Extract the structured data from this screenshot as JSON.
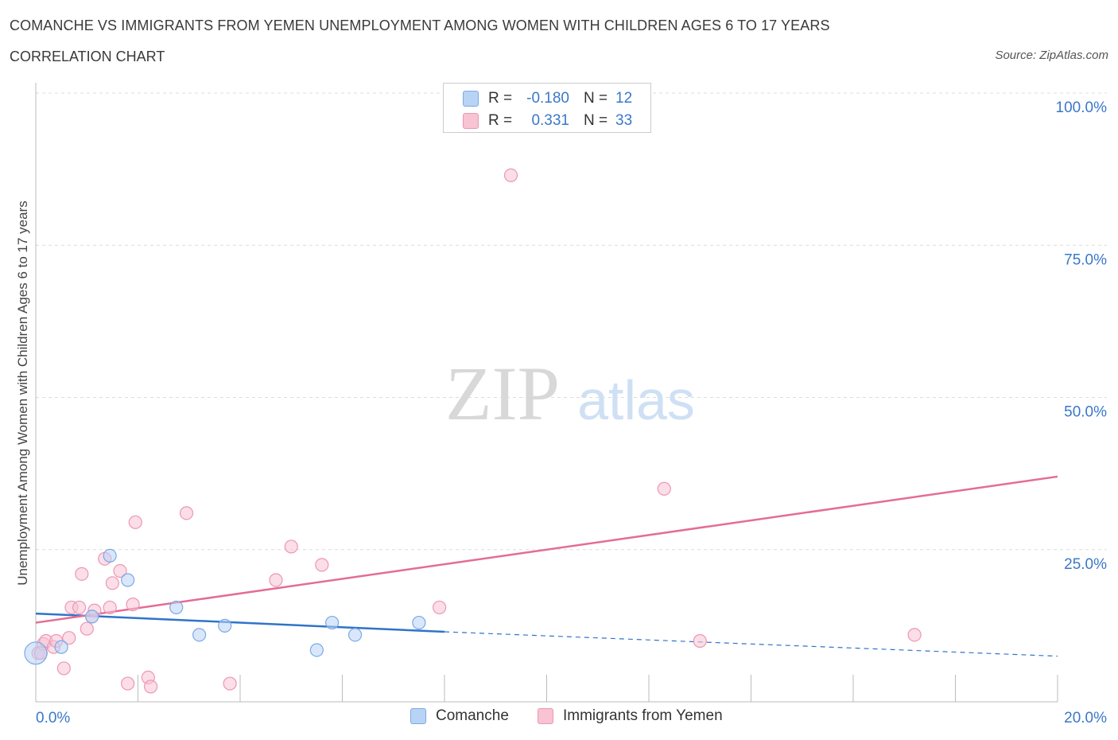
{
  "header": {
    "title": "COMANCHE VS IMMIGRANTS FROM YEMEN UNEMPLOYMENT AMONG WOMEN WITH CHILDREN AGES 6 TO 17 YEARS",
    "subtitle": "CORRELATION CHART",
    "source": "Source: ZipAtlas.com"
  },
  "watermark": {
    "zip": "ZIP",
    "atlas": "atlas"
  },
  "stats": {
    "rows": [
      {
        "r_label": "R =",
        "r_value": "-0.180",
        "n_label": "N =",
        "n_value": "12"
      },
      {
        "r_label": "R =",
        "r_value": "0.331",
        "n_label": "N =",
        "n_value": "33"
      }
    ]
  },
  "colors": {
    "comanche_fill": "#b9d3f5",
    "comanche_stroke": "#7aa9e6",
    "comanche_line": "#2f74c8",
    "yemen_fill": "#f8c3d3",
    "yemen_stroke": "#ec97b2",
    "yemen_line": "#e36d95",
    "tick_text": "#3a78c9"
  },
  "chart_data": {
    "type": "scatter",
    "xlabel": "",
    "ylabel": "Unemployment Among Women with Children Ages 6 to 17 years",
    "xlim": [
      0,
      20
    ],
    "ylim": [
      0,
      100
    ],
    "x_ticks": [
      "0.0%",
      "20.0%"
    ],
    "y_ticks": [
      {
        "value": 100,
        "label": "100.0%"
      },
      {
        "value": 75,
        "label": "75.0%"
      },
      {
        "value": 50,
        "label": "50.0%"
      },
      {
        "value": 25,
        "label": "25.0%"
      }
    ],
    "grid": true,
    "legend_position": "bottom",
    "series": [
      {
        "name": "Comanche",
        "color": "#7aa9e6",
        "points": [
          {
            "x": 0.0,
            "y": 8.0,
            "big": true
          },
          {
            "x": 0.5,
            "y": 9.0
          },
          {
            "x": 1.1,
            "y": 14.0
          },
          {
            "x": 1.45,
            "y": 24.0
          },
          {
            "x": 1.8,
            "y": 20.0
          },
          {
            "x": 2.75,
            "y": 15.5
          },
          {
            "x": 3.2,
            "y": 11.0
          },
          {
            "x": 3.7,
            "y": 12.5
          },
          {
            "x": 5.5,
            "y": 8.5
          },
          {
            "x": 5.8,
            "y": 13.0
          },
          {
            "x": 6.25,
            "y": 11.0
          },
          {
            "x": 7.5,
            "y": 13.0
          }
        ],
        "trend": {
          "x0": 0,
          "y0": 14.5,
          "x1": 8.0,
          "y1": 11.5,
          "dash_to_x": 20,
          "dash_to_y": 7.5
        }
      },
      {
        "name": "Immigrants from Yemen",
        "color": "#ec97b2",
        "points": [
          {
            "x": 0.05,
            "y": 8.0
          },
          {
            "x": 0.15,
            "y": 9.5
          },
          {
            "x": 0.2,
            "y": 10.0
          },
          {
            "x": 0.35,
            "y": 9.0
          },
          {
            "x": 0.4,
            "y": 10.0
          },
          {
            "x": 0.55,
            "y": 5.5
          },
          {
            "x": 0.65,
            "y": 10.5
          },
          {
            "x": 0.7,
            "y": 15.5
          },
          {
            "x": 0.85,
            "y": 15.5
          },
          {
            "x": 0.9,
            "y": 21.0
          },
          {
            "x": 1.0,
            "y": 12.0
          },
          {
            "x": 1.1,
            "y": 14.0
          },
          {
            "x": 1.15,
            "y": 15.0
          },
          {
            "x": 1.35,
            "y": 23.5
          },
          {
            "x": 1.45,
            "y": 15.5
          },
          {
            "x": 1.5,
            "y": 19.5
          },
          {
            "x": 1.65,
            "y": 21.5
          },
          {
            "x": 1.8,
            "y": 3.0
          },
          {
            "x": 1.9,
            "y": 16.0
          },
          {
            "x": 1.95,
            "y": 29.5
          },
          {
            "x": 2.2,
            "y": 4.0
          },
          {
            "x": 2.25,
            "y": 2.5
          },
          {
            "x": 2.95,
            "y": 31.0
          },
          {
            "x": 3.8,
            "y": 3.0
          },
          {
            "x": 4.7,
            "y": 20.0
          },
          {
            "x": 5.0,
            "y": 25.5
          },
          {
            "x": 5.6,
            "y": 22.5
          },
          {
            "x": 7.9,
            "y": 15.5
          },
          {
            "x": 9.3,
            "y": 86.5
          },
          {
            "x": 12.3,
            "y": 35.0
          },
          {
            "x": 13.0,
            "y": 10.0
          },
          {
            "x": 17.2,
            "y": 11.0
          },
          {
            "x": 0.1,
            "y": 8.0
          }
        ],
        "trend": {
          "x0": 0,
          "y0": 13.0,
          "x1": 20,
          "y1": 37.0
        }
      }
    ]
  }
}
